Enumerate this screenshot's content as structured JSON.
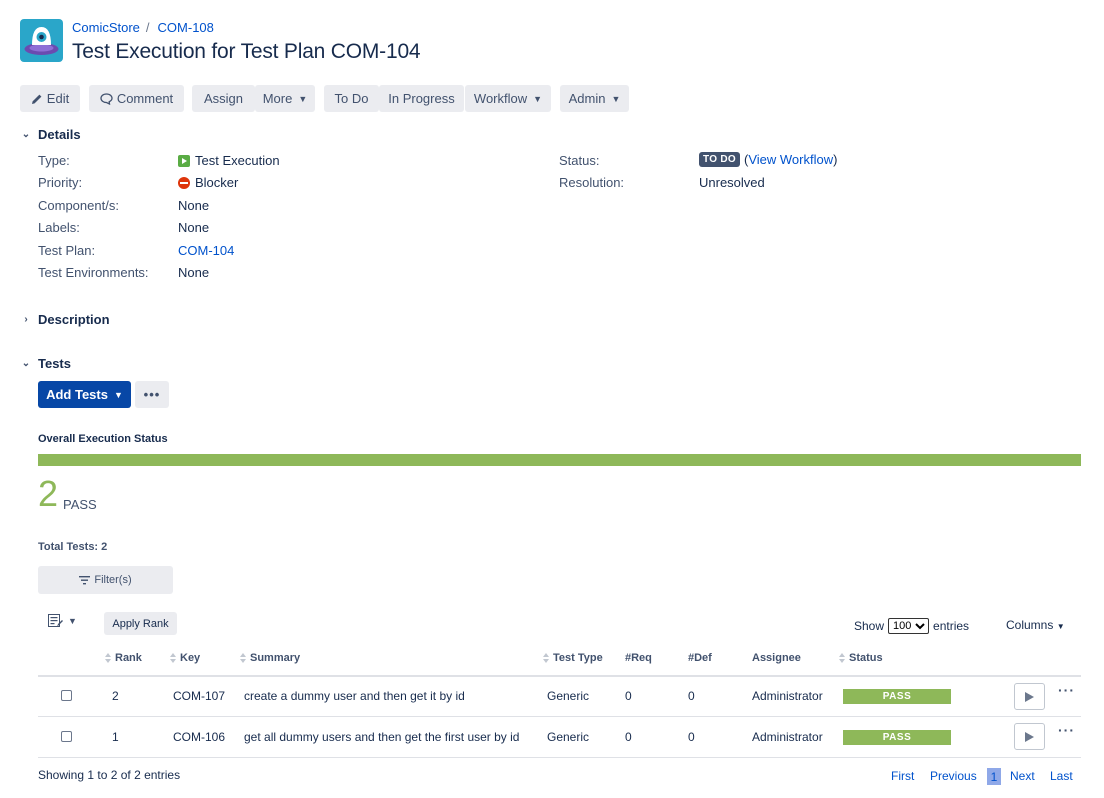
{
  "breadcrumb": {
    "project": "ComicStore",
    "issue_key": "COM-108"
  },
  "page_title": "Test Execution for Test Plan COM-104",
  "toolbar": {
    "edit": "Edit",
    "comment": "Comment",
    "assign": "Assign",
    "more": "More",
    "to_do": "To Do",
    "in_progress": "In Progress",
    "workflow": "Workflow",
    "admin": "Admin"
  },
  "details": {
    "heading": "Details",
    "type_label": "Type:",
    "type_value": "Test Execution",
    "priority_label": "Priority:",
    "priority_value": "Blocker",
    "components_label": "Component/s:",
    "components_value": "None",
    "labels_label": "Labels:",
    "labels_value": "None",
    "test_plan_label": "Test Plan:",
    "test_plan_value": "COM-104",
    "test_env_label": "Test Environments:",
    "test_env_value": "None",
    "status_label": "Status:",
    "status_value": "TO DO",
    "view_workflow_open": "(",
    "view_workflow": "View Workflow",
    "view_workflow_close": ")",
    "resolution_label": "Resolution:",
    "resolution_value": "Unresolved"
  },
  "description": {
    "heading": "Description"
  },
  "tests": {
    "heading": "Tests",
    "add_tests": "Add Tests",
    "more_actions": "•••",
    "overall_label": "Overall Execution Status",
    "pass_fraction": 1.0,
    "pass_count": "2",
    "pass_text": "PASS",
    "total_tests": "Total Tests: 2",
    "filter": "Filter(s)",
    "apply_rank": "Apply Rank",
    "show_label": "Show",
    "entries_value": "100",
    "entries_label": "entries",
    "columns": "Columns"
  },
  "table": {
    "headers": {
      "rank": "Rank",
      "key": "Key",
      "summary": "Summary",
      "test_type": "Test Type",
      "req": "#Req",
      "def": "#Def",
      "assignee": "Assignee",
      "status": "Status"
    },
    "rows": [
      {
        "rank": "2",
        "key": "COM-107",
        "summary": "create a dummy user and then get it by id",
        "test_type": "Generic",
        "req": "0",
        "def": "0",
        "assignee": "Administrator",
        "status": "PASS"
      },
      {
        "rank": "1",
        "key": "COM-106",
        "summary": "get all dummy users and then get the first user by id",
        "test_type": "Generic",
        "req": "0",
        "def": "0",
        "assignee": "Administrator",
        "status": "PASS"
      }
    ],
    "row_more": "···",
    "showing": "Showing 1 to 2 of 2 entries"
  },
  "pagination": {
    "first": "First",
    "previous": "Previous",
    "current": "1",
    "next": "Next",
    "last": "Last"
  },
  "colors": {
    "accent": "#0052cc",
    "primary_button": "#0747a6",
    "pass": "#8eb859",
    "lozenge_todo": "#42526e"
  }
}
